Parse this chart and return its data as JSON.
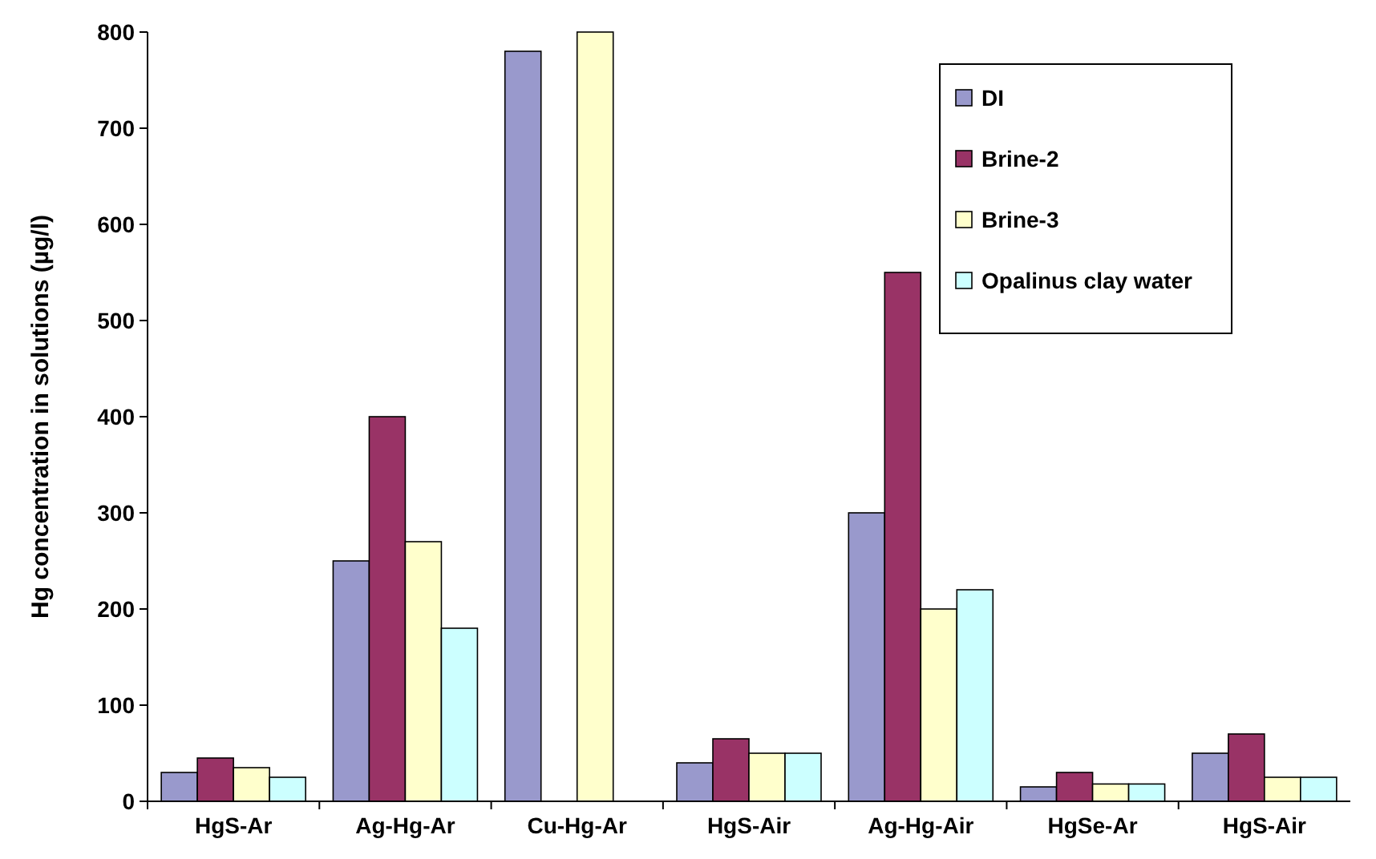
{
  "chart_data": {
    "type": "bar",
    "ylabel": "Hg concentration in solutions (µg/l)",
    "categories": [
      "HgS-Ar",
      "Ag-Hg-Ar",
      "Cu-Hg-Ar",
      "HgS-Air",
      "Ag-Hg-Air",
      "HgSe-Ar",
      "HgS-Air"
    ],
    "series": [
      {
        "name": "DI",
        "color": "#9999cc",
        "values": [
          30,
          250,
          780,
          40,
          300,
          15,
          50
        ]
      },
      {
        "name": "Brine-2",
        "color": "#993366",
        "values": [
          45,
          400,
          0,
          65,
          550,
          30,
          70
        ]
      },
      {
        "name": "Brine-3",
        "color": "#ffffcc",
        "values": [
          35,
          270,
          800,
          50,
          200,
          18,
          25
        ]
      },
      {
        "name": "Opalinus clay water",
        "color": "#ccffff",
        "values": [
          25,
          180,
          0,
          50,
          220,
          18,
          25
        ]
      }
    ],
    "ylim": [
      0,
      800
    ],
    "yticks": [
      0,
      100,
      200,
      300,
      400,
      500,
      600,
      700,
      800
    ],
    "grid": false,
    "legend": "top right"
  }
}
